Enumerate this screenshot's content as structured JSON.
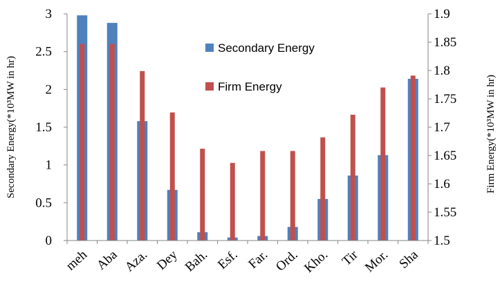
{
  "chart_data": {
    "type": "bar",
    "categories": [
      "meh",
      "Aba",
      "Aza.",
      "Dey",
      "Bah.",
      "Esf.",
      "Far.",
      "Ord.",
      "Kho.",
      "Tir",
      "Mor.",
      "Sha"
    ],
    "series": [
      {
        "name": "Secondary Energy",
        "axis": "left",
        "color": "#4F81BD",
        "values": [
          2.98,
          2.88,
          1.58,
          0.67,
          0.11,
          0.04,
          0.06,
          0.18,
          0.55,
          0.86,
          1.13,
          2.14
        ]
      },
      {
        "name": "Firm Energy",
        "axis": "right",
        "color": "#C0504D",
        "values": [
          1.847,
          1.847,
          1.799,
          1.726,
          1.662,
          1.637,
          1.658,
          1.658,
          1.682,
          1.722,
          1.77,
          1.791
        ]
      }
    ],
    "y_left": {
      "label": "Secondary Energy(*10³MW in hr)",
      "range": [
        0,
        3
      ],
      "ticks": [
        "0",
        "0.5",
        "1",
        "1.5",
        "2",
        "2.5",
        "3"
      ]
    },
    "y_right": {
      "label": "Firm Energy(*10³MW in hr)",
      "range": [
        1.5,
        1.9
      ],
      "ticks": [
        "1.5",
        "1.55",
        "1.6",
        "1.65",
        "1.7",
        "1.75",
        "1.8",
        "1.85",
        "1.9"
      ]
    },
    "legend": {
      "placement": "top-center",
      "entries": [
        "Secondary Energy",
        "Firm Energy"
      ]
    },
    "grid": false
  }
}
